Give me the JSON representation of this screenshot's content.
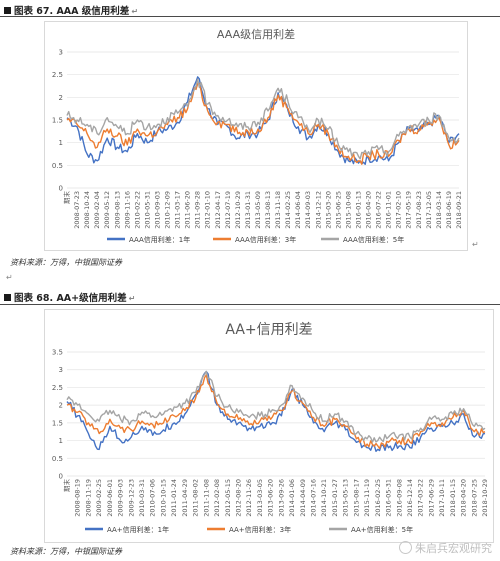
{
  "figure67": {
    "caption": "图表 67. AAA 级信用利差",
    "source": "资料来源：万得，中银国际证券"
  },
  "figure68": {
    "caption": "图表 68. AA+级信用利差",
    "source": "资料来源：万得，中银国际证券"
  },
  "watermark": "朱启兵宏观研究",
  "colors": {
    "series1": "#4472C4",
    "series2": "#ED7D31",
    "series3": "#A5A5A5"
  },
  "chart_data": [
    {
      "type": "line",
      "title": "AAA级信用利差",
      "xlabel": "",
      "ylabel": "",
      "ylim": [
        0,
        3
      ],
      "yticks": [
        0,
        0.5,
        1,
        1.5,
        2,
        2.5,
        3
      ],
      "grid": true,
      "legend_position": "bottom",
      "x_categories": [
        "期末",
        "2008-07-23",
        "2008-10-24",
        "2009-02-04",
        "2009-05-12",
        "2009-08-13",
        "2009-11-16",
        "2010-02-22",
        "2010-05-31",
        "2010-09-03",
        "2010-12-09",
        "2011-03-17",
        "2011-06-20",
        "2011-09-28",
        "2012-01-10",
        "2012-04-17",
        "2012-07-19",
        "2012-10-29",
        "2013-01-31",
        "2013-05-09",
        "2013-08-13",
        "2013-11-18",
        "2014-02-25",
        "2014-06-04",
        "2014-09-03",
        "2014-12-12",
        "2015-03-20",
        "2015-06-25",
        "2015-10-08",
        "2016-01-13",
        "2016-04-20",
        "2016-07-22",
        "2016-11-01",
        "2017-02-10",
        "2017-05-19",
        "2017-08-23",
        "2017-12-05",
        "2018-03-14",
        "2018-06-19",
        "2018-09-21"
      ],
      "series": [
        {
          "name": "AAA信用利差：1年",
          "values": [
            1.55,
            1.35,
            0.75,
            0.6,
            1.1,
            0.9,
            0.8,
            1.2,
            1.0,
            1.25,
            1.3,
            1.45,
            1.9,
            2.45,
            1.75,
            1.4,
            1.35,
            1.1,
            1.2,
            1.2,
            1.5,
            2.1,
            1.7,
            1.35,
            1.1,
            1.4,
            1.2,
            0.8,
            0.6,
            0.55,
            0.65,
            0.7,
            0.6,
            1.0,
            1.3,
            1.25,
            1.4,
            1.6,
            1.0,
            1.2
          ]
        },
        {
          "name": "AAA信用利差：3年",
          "values": [
            1.5,
            1.4,
            1.2,
            0.9,
            1.3,
            1.15,
            0.95,
            1.3,
            1.15,
            1.25,
            1.4,
            1.55,
            1.75,
            2.3,
            1.7,
            1.45,
            1.4,
            1.2,
            1.25,
            1.3,
            1.55,
            2.05,
            1.75,
            1.45,
            1.2,
            1.4,
            1.2,
            0.85,
            0.7,
            0.6,
            0.7,
            0.75,
            0.7,
            1.05,
            1.3,
            1.3,
            1.45,
            1.55,
            0.95,
            1.05
          ]
        },
        {
          "name": "AAA信用利差：5年",
          "values": [
            1.6,
            1.5,
            1.4,
            1.2,
            1.55,
            1.35,
            1.2,
            1.5,
            1.35,
            1.4,
            1.55,
            1.65,
            1.8,
            2.4,
            1.85,
            1.6,
            1.5,
            1.35,
            1.35,
            1.45,
            1.7,
            2.2,
            1.9,
            1.55,
            1.3,
            1.5,
            1.3,
            0.95,
            0.8,
            0.7,
            0.8,
            0.85,
            0.8,
            1.15,
            1.35,
            1.4,
            1.5,
            1.6,
            1.1,
            1.1
          ]
        }
      ]
    },
    {
      "type": "line",
      "title": "AA+信用利差",
      "xlabel": "",
      "ylabel": "",
      "ylim": [
        0,
        3.5
      ],
      "yticks": [
        0,
        0.5,
        1,
        1.5,
        2,
        2.5,
        3,
        3.5
      ],
      "grid": true,
      "legend_position": "bottom",
      "x_categories": [
        "期末",
        "2008-08-19",
        "2008-11-19",
        "2009-02-25",
        "2009-06-01",
        "2009-09-03",
        "2009-12-23",
        "2010-03-31",
        "2010-07-06",
        "2010-10-15",
        "2011-01-24",
        "2011-04-29",
        "2011-08-02",
        "2011-11-08",
        "2012-02-08",
        "2012-05-15",
        "2012-08-20",
        "2012-11-26",
        "2013-03-05",
        "2013-06-20",
        "2013-09-26",
        "2014-01-06",
        "2014-04-09",
        "2014-07-16",
        "2014-10-21",
        "2015-01-27",
        "2015-05-13",
        "2015-08-17",
        "2015-11-19",
        "2016-02-25",
        "2016-05-31",
        "2016-09-08",
        "2016-12-14",
        "2017-03-22",
        "2017-06-29",
        "2017-10-11",
        "2018-01-15",
        "2018-04-20",
        "2018-07-25",
        "2018-10-29"
      ],
      "series": [
        {
          "name": "AA+信用利差：1年",
          "values": [
            2.1,
            1.7,
            1.2,
            0.75,
            1.4,
            1.0,
            1.1,
            1.4,
            1.15,
            1.3,
            1.5,
            1.75,
            2.3,
            2.95,
            2.0,
            1.6,
            1.5,
            1.35,
            1.4,
            1.45,
            1.7,
            2.45,
            2.0,
            1.5,
            1.25,
            1.5,
            1.3,
            0.95,
            0.8,
            0.75,
            0.8,
            0.85,
            0.8,
            1.1,
            1.35,
            1.4,
            1.5,
            1.75,
            1.1,
            1.2
          ]
        },
        {
          "name": "AA+信用利差：3年",
          "values": [
            2.0,
            1.8,
            1.5,
            1.2,
            1.6,
            1.35,
            1.3,
            1.55,
            1.45,
            1.5,
            1.7,
            1.85,
            2.2,
            2.85,
            2.05,
            1.75,
            1.6,
            1.45,
            1.55,
            1.6,
            1.85,
            2.4,
            2.05,
            1.65,
            1.4,
            1.6,
            1.4,
            1.05,
            0.9,
            0.85,
            0.95,
            1.0,
            0.95,
            1.25,
            1.5,
            1.5,
            1.65,
            1.85,
            1.25,
            1.25
          ]
        },
        {
          "name": "AA+信用利差：5年",
          "values": [
            2.15,
            2.0,
            1.75,
            1.55,
            1.85,
            1.6,
            1.55,
            1.8,
            1.7,
            1.75,
            1.95,
            2.05,
            2.35,
            2.95,
            2.25,
            1.95,
            1.8,
            1.65,
            1.7,
            1.8,
            2.0,
            2.55,
            2.2,
            1.8,
            1.55,
            1.75,
            1.55,
            1.2,
            1.05,
            1.0,
            1.1,
            1.15,
            1.1,
            1.35,
            1.6,
            1.6,
            1.75,
            1.9,
            1.4,
            1.35
          ]
        }
      ]
    }
  ]
}
